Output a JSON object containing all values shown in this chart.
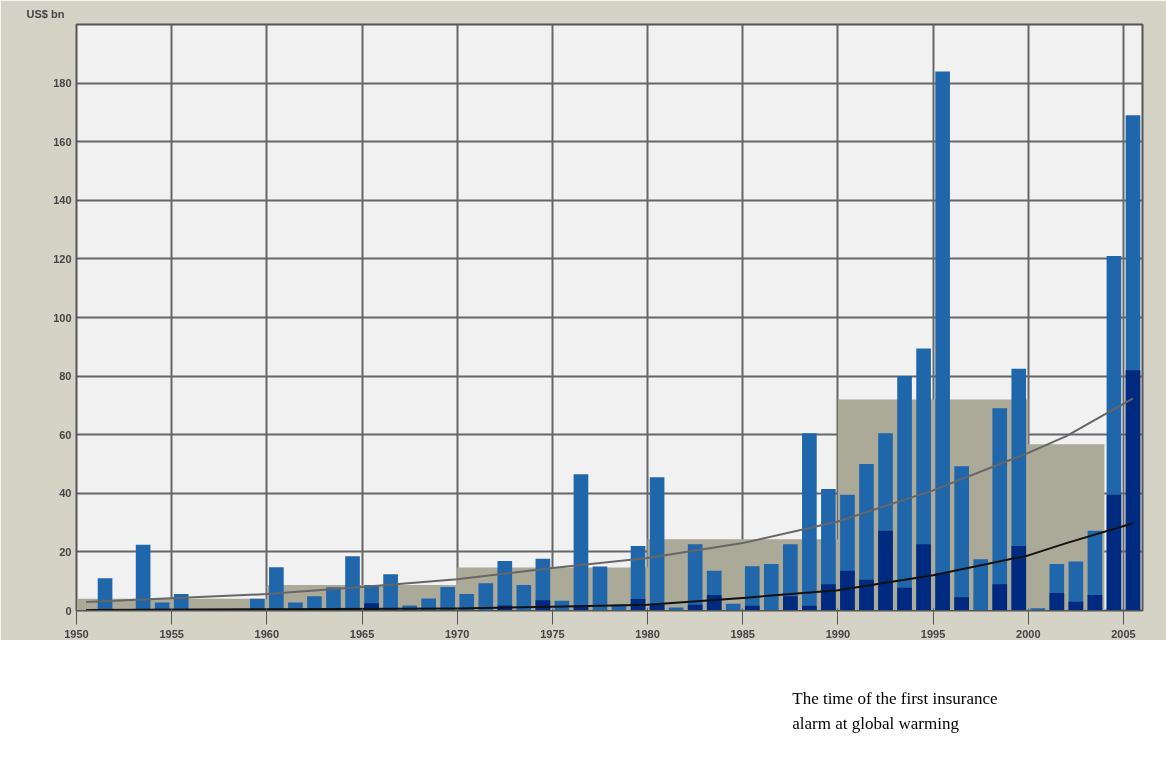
{
  "chart_data": {
    "type": "bar",
    "ylabel": "US$ bn",
    "xlim": [
      1950,
      2006
    ],
    "ylim": [
      0,
      200
    ],
    "xticks": [
      1950,
      1955,
      1960,
      1965,
      1970,
      1975,
      1980,
      1985,
      1990,
      1995,
      2000,
      2005
    ],
    "yticks": [
      0,
      20,
      40,
      60,
      80,
      100,
      120,
      140,
      160,
      180
    ],
    "grid": true,
    "series": [
      {
        "type": "area",
        "color": "#aba998",
        "x": [
          1950,
          1960,
          1960,
          1970,
          1970,
          1980,
          1980,
          1990,
          1990,
          2000,
          2000,
          2004
        ],
        "values": [
          4,
          4,
          8.7,
          8.7,
          14.7,
          14.7,
          24.3,
          24.3,
          72,
          72,
          56.7,
          56.7
        ]
      },
      {
        "color": "#2066aa",
        "x": [
          1951.5,
          1953.5,
          1954.5,
          1955.5,
          1959.5,
          1960.5,
          1961.5,
          1962.5,
          1963.5,
          1964.5,
          1965.5,
          1966.5,
          1967.5,
          1968.5,
          1969.5,
          1970.5,
          1971.5,
          1972.5,
          1973.5,
          1974.5,
          1975.5,
          1976.5,
          1977.5,
          1978.5,
          1979.5,
          1980.5,
          1981.5,
          1982.5,
          1983.5,
          1984.5,
          1985.5,
          1986.5,
          1987.5,
          1988.5,
          1989.5,
          1990.5,
          1991.5,
          1992.5,
          1993.5,
          1994.5,
          1995.5,
          1996.5,
          1997.5,
          1998.5,
          1999.5,
          2000.5,
          2001.5,
          2002.5,
          2003.5,
          2004.5,
          2005.5
        ],
        "values": [
          11,
          22.4,
          2.7,
          5.6,
          4,
          14.8,
          2.7,
          4.9,
          7.9,
          18.5,
          8.7,
          12.4,
          1.7,
          4.1,
          8,
          5.6,
          9.3,
          16.9,
          8.7,
          17.7,
          3.3,
          46.5,
          15,
          2,
          22,
          45.5,
          1,
          22.6,
          13.6,
          2.3,
          15.1,
          15.9,
          22.6,
          60.5,
          41.5,
          39.5,
          50,
          60.5,
          80,
          89.4,
          184,
          49.2,
          17.5,
          69,
          82.5,
          0.8,
          15.9,
          16.7,
          27.2,
          121,
          169
        ]
      },
      {
        "color": "#002a80",
        "x": [
          1965.5,
          1972.5,
          1974.5,
          1976.5,
          1979.5,
          1980.5,
          1982.5,
          1983.5,
          1985.5,
          1987.5,
          1988.5,
          1989.5,
          1990.5,
          1991.5,
          1992.5,
          1993.5,
          1994.5,
          1995.5,
          1996.5,
          1998.5,
          1999.5,
          2001.5,
          2002.5,
          2003.5,
          2004.5,
          2005.5
        ],
        "values": [
          2.5,
          1.7,
          3.5,
          1.3,
          3.9,
          2,
          2,
          5.3,
          1.6,
          4.9,
          1.6,
          9,
          13.6,
          10.5,
          27.2,
          7.8,
          22.6,
          12.7,
          4.5,
          9,
          22,
          6,
          3,
          5.3,
          39.5,
          82
        ]
      },
      {
        "type": "line",
        "color": "#666666",
        "x": [
          1950.5,
          1960,
          1965,
          1970,
          1975,
          1980,
          1985,
          1990,
          1995,
          2000,
          2002,
          2005.5
        ],
        "values": [
          2.9,
          5.6,
          8,
          10.7,
          14.5,
          17.9,
          23,
          30.4,
          41,
          53.8,
          59.5,
          72.4
        ]
      },
      {
        "type": "line",
        "color": "#111111",
        "x": [
          1950.5,
          1960,
          1970,
          1975,
          1980,
          1985,
          1990,
          1995,
          2000,
          2002,
          2005.5
        ],
        "values": [
          0.2,
          0.4,
          0.7,
          1.3,
          2,
          4.3,
          6.9,
          12,
          18.8,
          23,
          29.8
        ]
      }
    ],
    "annotations": [
      "The time of the first insurance alarm at global warming"
    ]
  }
}
